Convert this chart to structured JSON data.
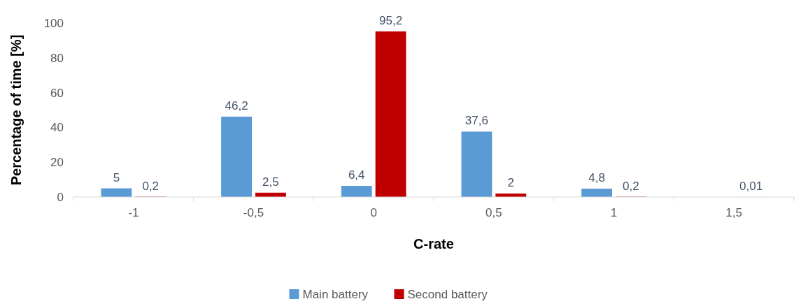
{
  "chart_data": {
    "type": "bar",
    "xlabel": "C-rate",
    "ylabel": "Percentage of time [%]",
    "categories": [
      "-1",
      "-0,5",
      "0",
      "0,5",
      "1",
      "1,5"
    ],
    "ylim": [
      0,
      100
    ],
    "yticks": [
      0,
      20,
      40,
      60,
      80,
      100
    ],
    "legend": "bottom",
    "series": [
      {
        "name": "Main battery",
        "color": "#5b9bd5",
        "values": [
          5,
          46.2,
          6.4,
          37.6,
          4.8,
          null
        ],
        "value_labels": [
          "5",
          "46,2",
          "6,4",
          "37,6",
          "4,8",
          null
        ]
      },
      {
        "name": "Second battery",
        "color": "#c00000",
        "values": [
          0.2,
          2.5,
          95.2,
          2,
          0.2,
          0.01
        ],
        "value_labels": [
          "0,2",
          "2,5",
          "95,2",
          "2",
          "0,2",
          "0,01"
        ]
      }
    ]
  }
}
